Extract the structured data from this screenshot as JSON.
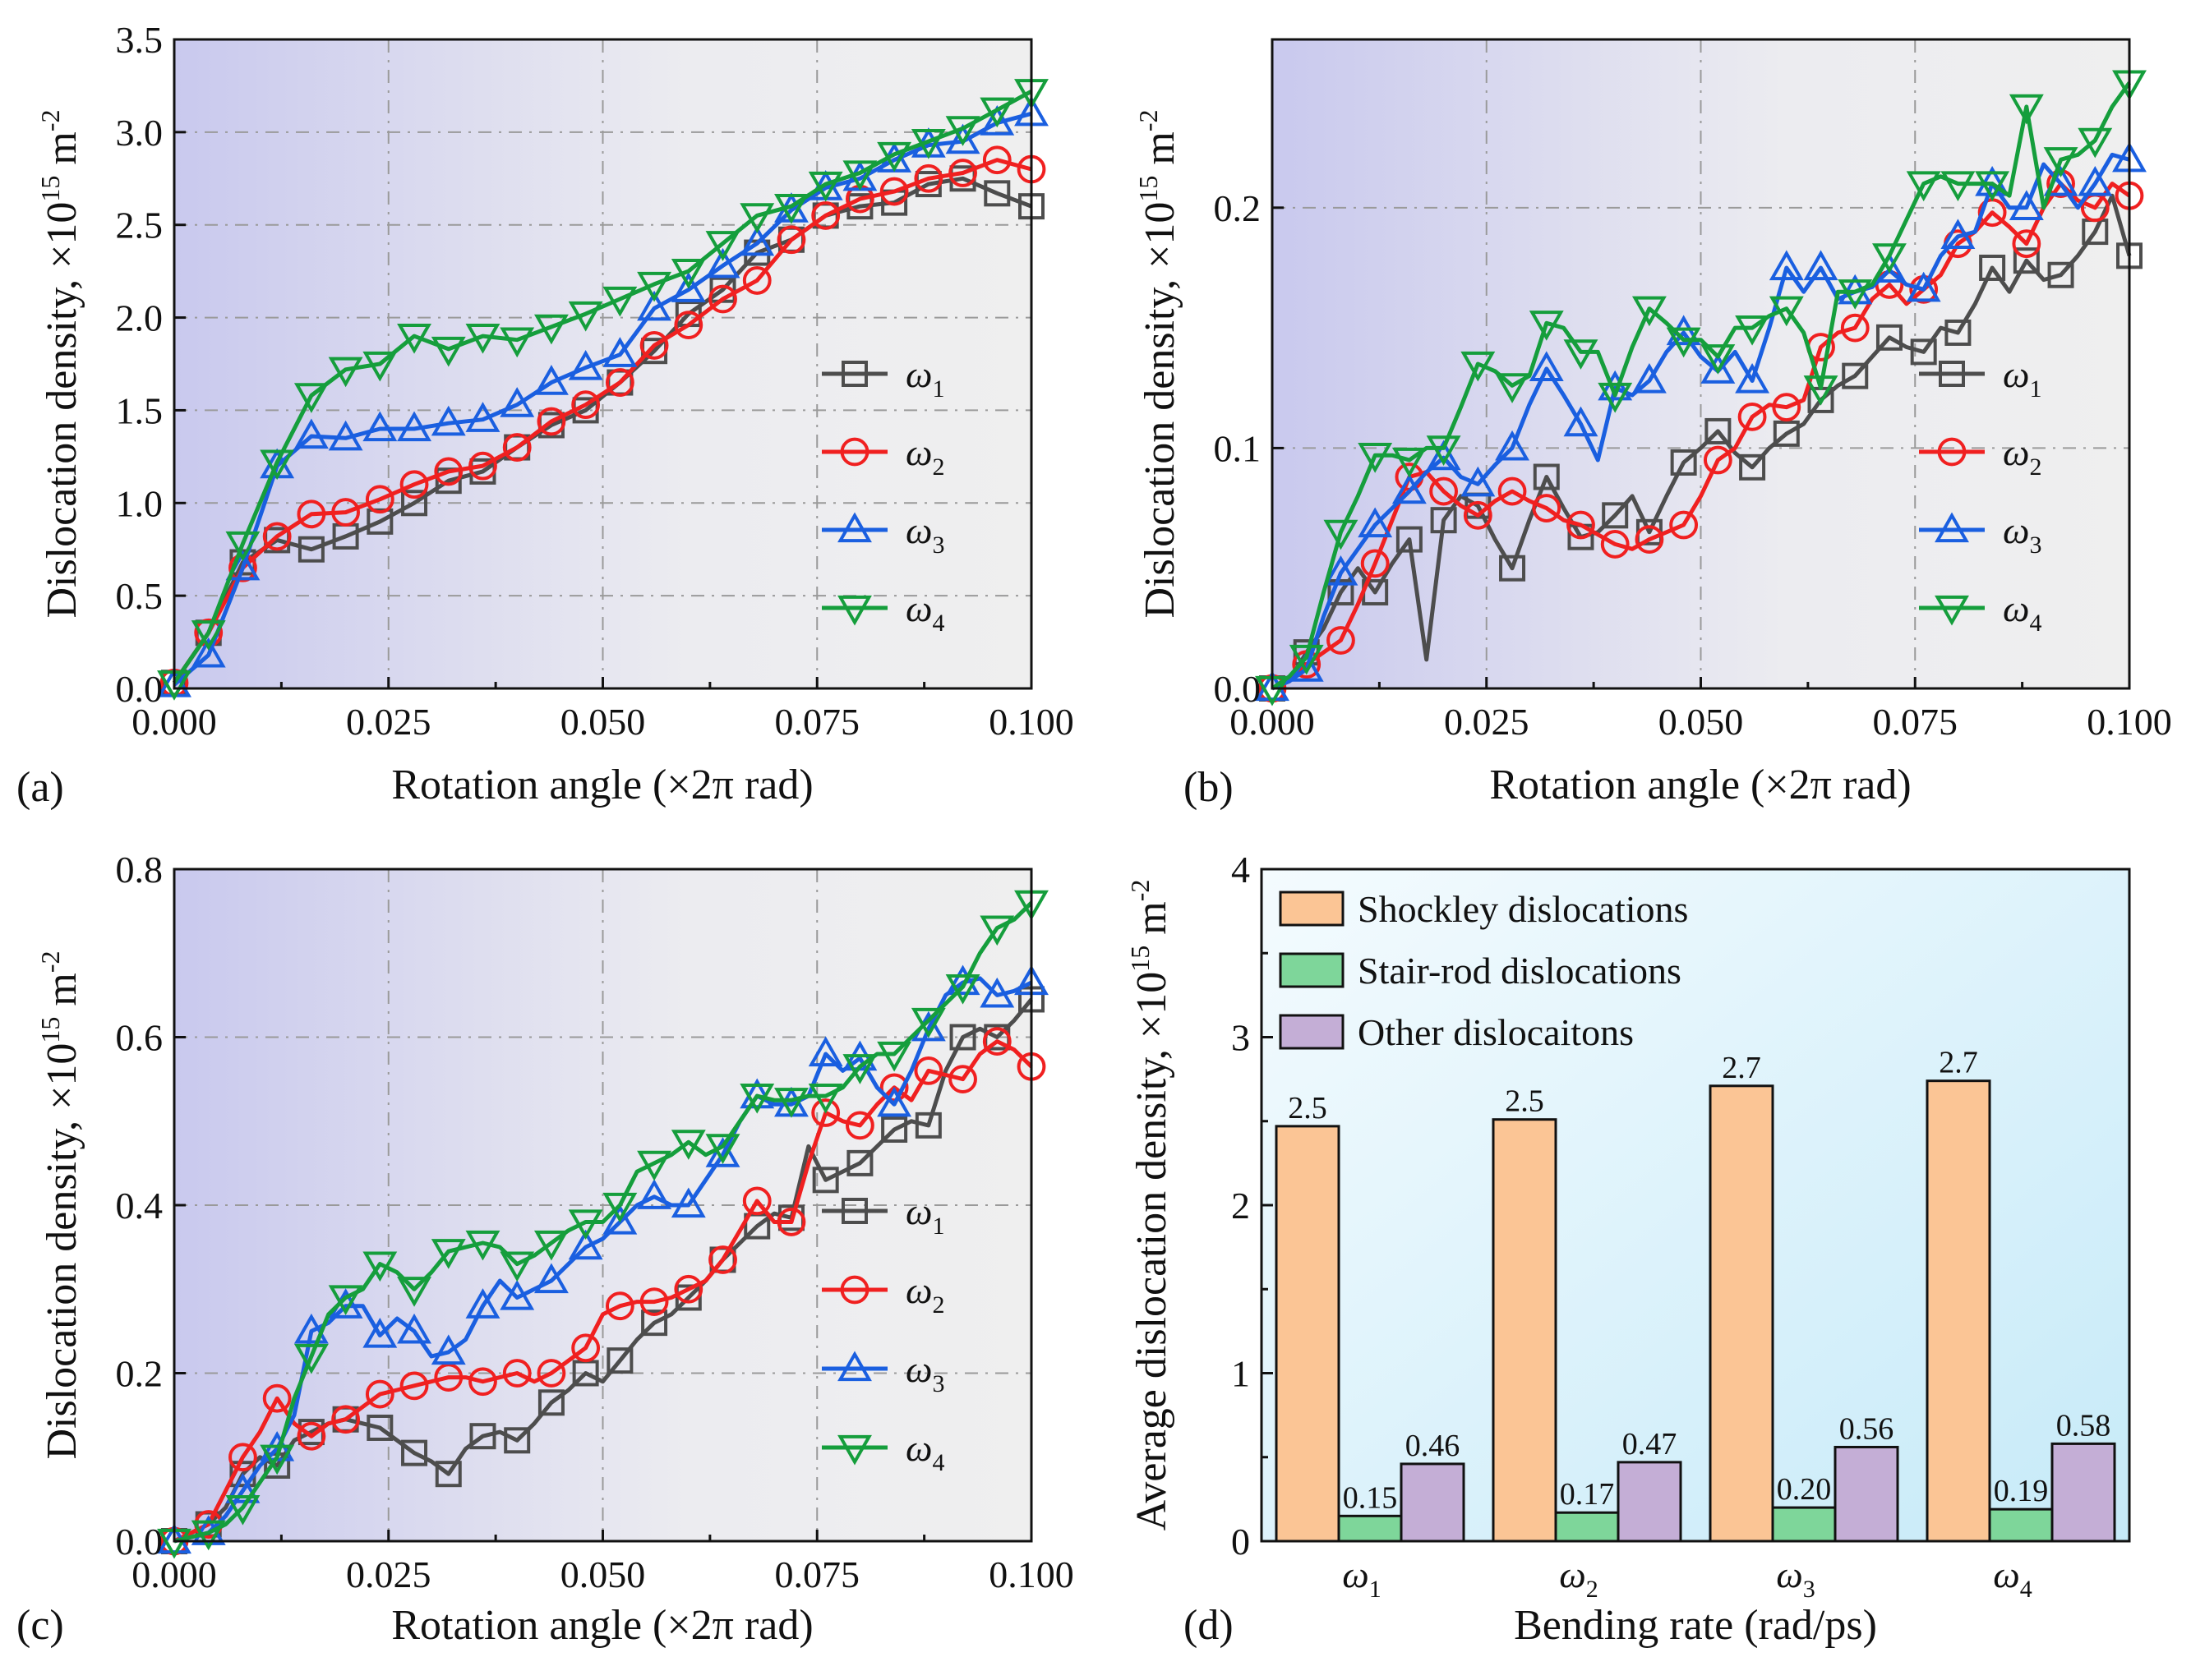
{
  "figure": {
    "line_series_meta": [
      {
        "key": "w1",
        "label": "ω",
        "sub": "1",
        "color": "#4d4d4d",
        "marker": "square"
      },
      {
        "key": "w2",
        "label": "ω",
        "sub": "2",
        "color": "#f02020",
        "marker": "circle"
      },
      {
        "key": "w3",
        "label": "ω",
        "sub": "3",
        "color": "#1a5fe0",
        "marker": "triangle-up"
      },
      {
        "key": "w4",
        "label": "ω",
        "sub": "4",
        "color": "#159e3c",
        "marker": "triangle-down"
      }
    ],
    "bar_colors": {
      "shockley": "#fbc595",
      "stair_rod": "#7ed69a",
      "other": "#c4aed6"
    },
    "background_colors": {
      "plot_left": "#c9c9ee",
      "plot_right": "#efefef",
      "bar_bg_light": "#f4fbfe",
      "bar_bg_dark": "#c6eaf8"
    }
  },
  "chart_data": [
    {
      "panel": "(a)",
      "type": "line",
      "title": "",
      "xlabel": "Rotation angle (×2π rad)",
      "ylabel": "Dislocation density, ×10",
      "ylabel_sup": "15",
      "ylabel_unit": " m",
      "ylabel_unit_sup": "-2",
      "xlim": [
        0,
        0.1
      ],
      "ylim": [
        0,
        3.5
      ],
      "xticks": [
        "0.000",
        "0.025",
        "0.050",
        "0.075",
        "0.100"
      ],
      "yticks": [
        "0.0",
        "0.5",
        "1.0",
        "1.5",
        "2.0",
        "2.5",
        "3.0",
        "3.5"
      ],
      "x": [
        0.0,
        0.004,
        0.008,
        0.012,
        0.016,
        0.02,
        0.024,
        0.028,
        0.032,
        0.036,
        0.04,
        0.044,
        0.048,
        0.052,
        0.056,
        0.06,
        0.064,
        0.068,
        0.072,
        0.076,
        0.08,
        0.084,
        0.088,
        0.092,
        0.096,
        0.1
      ],
      "series": [
        {
          "name": "ω1",
          "values": [
            0.03,
            0.3,
            0.68,
            0.8,
            0.75,
            0.82,
            0.9,
            1.0,
            1.12,
            1.17,
            1.3,
            1.42,
            1.5,
            1.65,
            1.82,
            2.02,
            2.15,
            2.35,
            2.42,
            2.55,
            2.6,
            2.62,
            2.72,
            2.75,
            2.67,
            2.6
          ]
        },
        {
          "name": "ω2",
          "values": [
            0.03,
            0.3,
            0.65,
            0.82,
            0.94,
            0.95,
            1.02,
            1.1,
            1.17,
            1.2,
            1.3,
            1.44,
            1.53,
            1.65,
            1.85,
            1.96,
            2.1,
            2.2,
            2.42,
            2.55,
            2.64,
            2.68,
            2.75,
            2.78,
            2.85,
            2.8
          ]
        },
        {
          "name": "ω3",
          "values": [
            0.02,
            0.18,
            0.65,
            1.2,
            1.36,
            1.35,
            1.4,
            1.4,
            1.43,
            1.45,
            1.53,
            1.65,
            1.73,
            1.8,
            2.05,
            2.15,
            2.28,
            2.4,
            2.58,
            2.7,
            2.75,
            2.85,
            2.93,
            2.95,
            3.05,
            3.1
          ]
        },
        {
          "name": "ω4",
          "values": [
            0.03,
            0.3,
            0.78,
            1.22,
            1.58,
            1.72,
            1.75,
            1.9,
            1.83,
            1.9,
            1.88,
            1.95,
            2.02,
            2.1,
            2.18,
            2.25,
            2.4,
            2.55,
            2.6,
            2.72,
            2.78,
            2.88,
            2.95,
            3.02,
            3.12,
            3.22
          ]
        }
      ]
    },
    {
      "panel": "(b)",
      "type": "line",
      "title": "",
      "xlabel": "Rotation angle (×2π rad)",
      "ylabel": "Dislocation density, ×10",
      "ylabel_sup": "15",
      "ylabel_unit": " m",
      "ylabel_unit_sup": "-2",
      "xlim": [
        0,
        0.1
      ],
      "ylim": [
        0,
        0.27
      ],
      "xticks": [
        "0.000",
        "0.025",
        "0.050",
        "0.075",
        "0.100"
      ],
      "ytick_values": [
        0.0,
        0.1,
        0.2
      ],
      "yticks": [
        "0.0",
        "0.1",
        "0.2"
      ],
      "x": [
        0.0,
        0.002,
        0.004,
        0.006,
        0.008,
        0.01,
        0.012,
        0.014,
        0.016,
        0.018,
        0.02,
        0.022,
        0.024,
        0.026,
        0.028,
        0.03,
        0.032,
        0.034,
        0.036,
        0.038,
        0.04,
        0.042,
        0.044,
        0.046,
        0.048,
        0.05,
        0.052,
        0.054,
        0.056,
        0.058,
        0.06,
        0.062,
        0.064,
        0.066,
        0.068,
        0.07,
        0.072,
        0.074,
        0.076,
        0.078,
        0.08,
        0.082,
        0.084,
        0.086,
        0.088,
        0.09,
        0.092,
        0.094,
        0.096,
        0.098,
        0.1
      ],
      "series": [
        {
          "name": "ω1",
          "values": [
            0.0,
            0.003,
            0.015,
            0.025,
            0.04,
            0.05,
            0.04,
            0.052,
            0.062,
            0.012,
            0.07,
            0.08,
            0.076,
            0.062,
            0.05,
            0.07,
            0.088,
            0.075,
            0.063,
            0.065,
            0.072,
            0.08,
            0.065,
            0.08,
            0.094,
            0.1,
            0.107,
            0.098,
            0.092,
            0.1,
            0.106,
            0.11,
            0.12,
            0.126,
            0.13,
            0.138,
            0.146,
            0.142,
            0.14,
            0.15,
            0.148,
            0.16,
            0.175,
            0.165,
            0.178,
            0.17,
            0.172,
            0.18,
            0.19,
            0.205,
            0.18
          ]
        },
        {
          "name": "ω2",
          "values": [
            0.0,
            0.003,
            0.01,
            0.015,
            0.02,
            0.035,
            0.052,
            0.07,
            0.088,
            0.09,
            0.082,
            0.076,
            0.072,
            0.078,
            0.082,
            0.078,
            0.075,
            0.07,
            0.068,
            0.064,
            0.06,
            0.058,
            0.062,
            0.065,
            0.068,
            0.08,
            0.095,
            0.1,
            0.113,
            0.118,
            0.117,
            0.12,
            0.142,
            0.148,
            0.15,
            0.162,
            0.168,
            0.16,
            0.166,
            0.172,
            0.185,
            0.19,
            0.198,
            0.192,
            0.185,
            0.2,
            0.21,
            0.203,
            0.2,
            0.21,
            0.205
          ]
        },
        {
          "name": "ω3",
          "values": [
            0.0,
            0.003,
            0.008,
            0.03,
            0.048,
            0.058,
            0.068,
            0.075,
            0.082,
            0.09,
            0.096,
            0.088,
            0.085,
            0.093,
            0.1,
            0.118,
            0.133,
            0.122,
            0.11,
            0.095,
            0.125,
            0.122,
            0.128,
            0.14,
            0.148,
            0.138,
            0.132,
            0.14,
            0.128,
            0.15,
            0.175,
            0.165,
            0.175,
            0.162,
            0.165,
            0.167,
            0.174,
            0.168,
            0.166,
            0.18,
            0.188,
            0.19,
            0.21,
            0.2,
            0.2,
            0.218,
            0.21,
            0.2,
            0.21,
            0.222,
            0.22
          ]
        },
        {
          "name": "ω4",
          "values": [
            0.0,
            0.005,
            0.013,
            0.04,
            0.065,
            0.08,
            0.097,
            0.097,
            0.095,
            0.1,
            0.1,
            0.117,
            0.135,
            0.132,
            0.126,
            0.13,
            0.152,
            0.15,
            0.14,
            0.14,
            0.122,
            0.142,
            0.158,
            0.152,
            0.145,
            0.145,
            0.138,
            0.15,
            0.15,
            0.155,
            0.158,
            0.148,
            0.125,
            0.165,
            0.165,
            0.168,
            0.18,
            0.195,
            0.21,
            0.213,
            0.21,
            0.21,
            0.21,
            0.205,
            0.242,
            0.2,
            0.22,
            0.222,
            0.228,
            0.242,
            0.252
          ]
        }
      ]
    },
    {
      "panel": "(c)",
      "type": "line",
      "title": "",
      "xlabel": "Rotation angle (×2π rad)",
      "ylabel": "Dislocation density, ×10",
      "ylabel_sup": "15",
      "ylabel_unit": " m",
      "ylabel_unit_sup": "-2",
      "xlim": [
        0,
        0.1
      ],
      "ylim": [
        0,
        0.8
      ],
      "xticks": [
        "0.000",
        "0.025",
        "0.050",
        "0.075",
        "0.100"
      ],
      "ytick_values": [
        0.0,
        0.2,
        0.4,
        0.6,
        0.8
      ],
      "yticks": [
        "0.0",
        "0.2",
        "0.4",
        "0.6",
        "0.8"
      ],
      "x": [
        0.0,
        0.002,
        0.004,
        0.006,
        0.008,
        0.01,
        0.012,
        0.014,
        0.016,
        0.018,
        0.02,
        0.022,
        0.024,
        0.026,
        0.028,
        0.03,
        0.032,
        0.034,
        0.036,
        0.038,
        0.04,
        0.042,
        0.044,
        0.046,
        0.048,
        0.05,
        0.052,
        0.054,
        0.056,
        0.058,
        0.06,
        0.062,
        0.064,
        0.066,
        0.068,
        0.07,
        0.072,
        0.074,
        0.076,
        0.078,
        0.08,
        0.082,
        0.084,
        0.086,
        0.088,
        0.09,
        0.092,
        0.094,
        0.096,
        0.098,
        0.1
      ],
      "series": [
        {
          "name": "ω1",
          "values": [
            0.0,
            0.01,
            0.02,
            0.04,
            0.08,
            0.1,
            0.09,
            0.12,
            0.13,
            0.14,
            0.145,
            0.14,
            0.135,
            0.12,
            0.105,
            0.095,
            0.08,
            0.11,
            0.125,
            0.13,
            0.12,
            0.14,
            0.165,
            0.18,
            0.2,
            0.19,
            0.215,
            0.24,
            0.26,
            0.27,
            0.29,
            0.31,
            0.335,
            0.355,
            0.375,
            0.39,
            0.385,
            0.47,
            0.43,
            0.44,
            0.45,
            0.47,
            0.49,
            0.5,
            0.495,
            0.56,
            0.6,
            0.61,
            0.6,
            0.62,
            0.645
          ]
        },
        {
          "name": "ω2",
          "values": [
            0.0,
            0.01,
            0.02,
            0.06,
            0.1,
            0.13,
            0.17,
            0.14,
            0.125,
            0.14,
            0.145,
            0.16,
            0.175,
            0.18,
            0.185,
            0.19,
            0.195,
            0.195,
            0.19,
            0.195,
            0.2,
            0.19,
            0.2,
            0.215,
            0.23,
            0.27,
            0.28,
            0.285,
            0.285,
            0.29,
            0.3,
            0.31,
            0.335,
            0.37,
            0.405,
            0.38,
            0.38,
            0.45,
            0.51,
            0.5,
            0.495,
            0.52,
            0.54,
            0.525,
            0.56,
            0.555,
            0.55,
            0.58,
            0.595,
            0.585,
            0.565
          ]
        },
        {
          "name": "ω3",
          "values": [
            0.0,
            0.005,
            0.01,
            0.03,
            0.06,
            0.09,
            0.11,
            0.15,
            0.25,
            0.26,
            0.28,
            0.28,
            0.245,
            0.265,
            0.25,
            0.22,
            0.225,
            0.24,
            0.28,
            0.31,
            0.29,
            0.3,
            0.31,
            0.33,
            0.35,
            0.36,
            0.38,
            0.4,
            0.41,
            0.4,
            0.4,
            0.43,
            0.46,
            0.5,
            0.53,
            0.52,
            0.52,
            0.53,
            0.58,
            0.56,
            0.575,
            0.54,
            0.52,
            0.56,
            0.61,
            0.65,
            0.665,
            0.67,
            0.65,
            0.655,
            0.665
          ]
        },
        {
          "name": "ω4",
          "values": [
            0.0,
            0.005,
            0.01,
            0.02,
            0.04,
            0.07,
            0.1,
            0.17,
            0.22,
            0.27,
            0.29,
            0.3,
            0.33,
            0.32,
            0.3,
            0.32,
            0.345,
            0.35,
            0.355,
            0.35,
            0.33,
            0.34,
            0.355,
            0.37,
            0.38,
            0.38,
            0.4,
            0.44,
            0.45,
            0.46,
            0.475,
            0.46,
            0.47,
            0.5,
            0.53,
            0.525,
            0.525,
            0.53,
            0.53,
            0.54,
            0.565,
            0.58,
            0.58,
            0.6,
            0.62,
            0.64,
            0.66,
            0.7,
            0.73,
            0.74,
            0.76
          ]
        }
      ]
    },
    {
      "panel": "(d)",
      "type": "bar",
      "title": "",
      "xlabel": "Bending rate (rad/ps)",
      "ylabel": "Average dislocation density, ×10",
      "ylabel_sup": "15",
      "ylabel_unit": " m",
      "ylabel_unit_sup": "-2",
      "ylim": [
        0,
        4
      ],
      "yticks": [
        "0",
        "1",
        "2",
        "3",
        "4"
      ],
      "categories": [
        {
          "label": "ω",
          "sub": "1"
        },
        {
          "label": "ω",
          "sub": "2"
        },
        {
          "label": "ω",
          "sub": "3"
        },
        {
          "label": "ω",
          "sub": "4"
        }
      ],
      "series": [
        {
          "name": "Shockley dislocations",
          "values": [
            2.47,
            2.51,
            2.71,
            2.74
          ],
          "labels": [
            "2.5",
            "2.5",
            "2.7",
            "2.7"
          ]
        },
        {
          "name": "Stair-rod dislocations",
          "values": [
            0.15,
            0.17,
            0.2,
            0.19
          ],
          "labels": [
            "0.15",
            "0.17",
            "0.20",
            "0.19"
          ]
        },
        {
          "name": "Other dislocaitons",
          "values": [
            0.46,
            0.47,
            0.56,
            0.58
          ],
          "labels": [
            "0.46",
            "0.47",
            "0.56",
            "0.58"
          ]
        }
      ]
    }
  ]
}
